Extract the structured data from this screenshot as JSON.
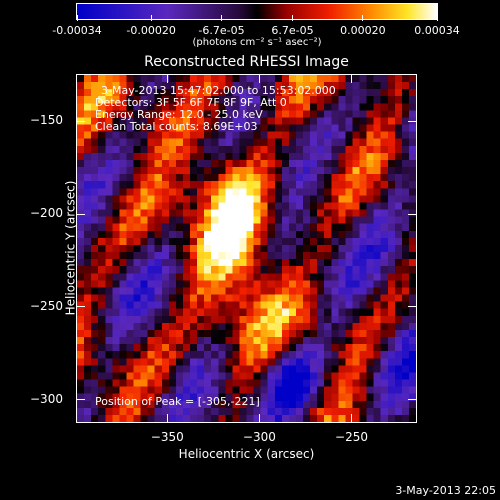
{
  "title": "Reconstructed RHESSI Image",
  "colorbar": {
    "labels": [
      "-0.00034",
      "-0.00020",
      "-6.7e-05",
      "6.7e-05",
      "0.00020",
      "0.00034"
    ],
    "values": [
      -0.00034,
      -0.0002,
      -6.7e-05,
      6.7e-05,
      0.0002,
      0.00034
    ],
    "units": "(photons cm⁻² s⁻¹ asec⁻²)"
  },
  "info": {
    "line1": "3-May-2013 15:47:02.000 to 15:53:02.000",
    "line2": "Detectors: 3F 5F 6F 7F 8F 9F, Att 0",
    "line3": "Energy Range: 12.0 - 25.0 keV",
    "line4": "Clean     Total counts: 8.69E+03"
  },
  "peak": "Position of Peak = [-305,-221]",
  "axes": {
    "xlabel": "Heliocentric X (arcsec)",
    "ylabel": "Heliocentric Y (arcsec)",
    "xticks": [
      "-350",
      "-300",
      "-250"
    ],
    "yticks": [
      "-150",
      "-200",
      "-250",
      "-300"
    ],
    "xlim": [
      -399,
      -215
    ],
    "ylim": [
      -312,
      -125
    ]
  },
  "footer_date": "3-May-2013 22:05"
}
